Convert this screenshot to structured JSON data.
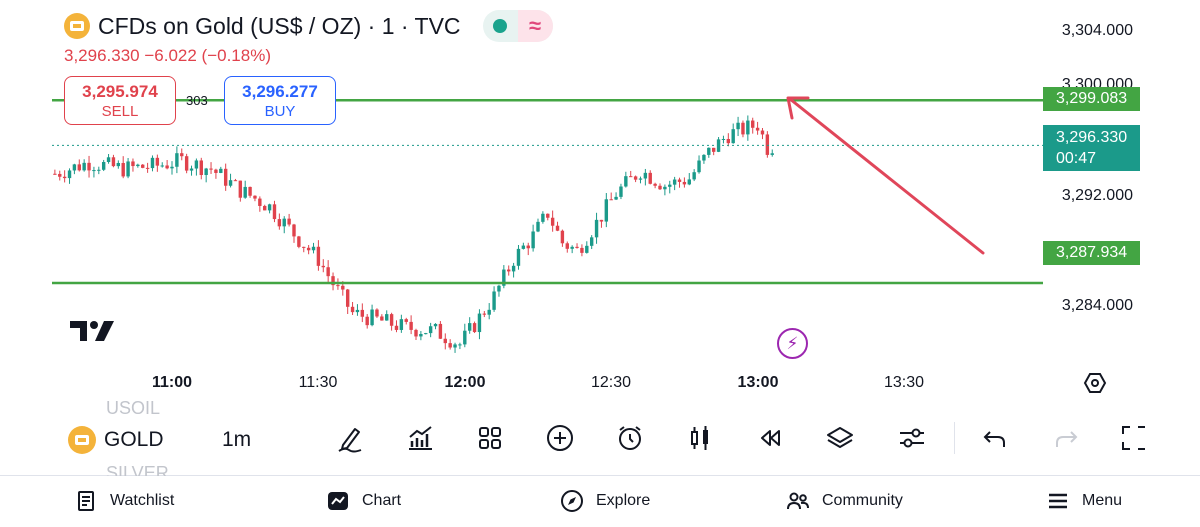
{
  "header": {
    "title": "CFDs on Gold (US$ / OZ) · 1 · TVC",
    "price_line": "3,296.330  −6.022 (−0.18%)"
  },
  "trade": {
    "sell_price": "3,295.974",
    "sell_label": "SELL",
    "spread": "303",
    "buy_price": "3,296.277",
    "buy_label": "BUY"
  },
  "y_axis": {
    "labels": [
      "3,304.000",
      "3,300.000",
      "3,292.000",
      "3,284.000"
    ]
  },
  "price_tags": {
    "resistance": "3,299.083",
    "current_price": "3,296.330",
    "countdown": "00:47",
    "support": "3,287.934"
  },
  "x_axis": {
    "labels": [
      "11:00",
      "11:30",
      "12:00",
      "12:30",
      "13:00",
      "13:30"
    ],
    "bold": [
      "11:00",
      "12:00",
      "13:00"
    ]
  },
  "colors": {
    "up": "#1b9a8a",
    "down": "#e0424c",
    "level_line": "#43a543",
    "arrow": "#e0465a",
    "accent_blue": "#2962ff"
  },
  "toolbar": {
    "ghost_above": "USOIL",
    "symbol": "GOLD",
    "interval": "1m",
    "ghost_below": "SILVER",
    "icons": [
      "pencil-icon",
      "indicators-icon",
      "grid-icon",
      "plus-circle-icon",
      "alarm-icon",
      "candles-icon",
      "replay-icon",
      "layers-icon",
      "settings-sliders-icon",
      "undo-icon",
      "redo-icon",
      "fullscreen-icon"
    ]
  },
  "bottom_nav": {
    "watchlist": "Watchlist",
    "chart": "Chart",
    "explore": "Explore",
    "community": "Community",
    "menu": "Menu"
  },
  "chart_data": {
    "type": "candlestick",
    "x_ticks": [
      "11:00",
      "11:30",
      "12:00",
      "12:30",
      "13:00",
      "13:30"
    ],
    "y_ticks": [
      3284,
      3292,
      3300,
      3304
    ],
    "ylim": [
      3280.8,
      3305.2
    ],
    "horizontal_levels": [
      3299.083,
      3287.934
    ],
    "current_price": 3296.33,
    "close_path": [
      {
        "t": "10:36",
        "price": 3294.6
      },
      {
        "t": "10:43",
        "price": 3295.3
      },
      {
        "t": "10:50",
        "price": 3294.9
      },
      {
        "t": "10:57",
        "price": 3295.1
      },
      {
        "t": "11:02",
        "price": 3295.4
      },
      {
        "t": "11:08",
        "price": 3294.9
      },
      {
        "t": "11:14",
        "price": 3293.6
      },
      {
        "t": "11:20",
        "price": 3292.6
      },
      {
        "t": "11:26",
        "price": 3290.6
      },
      {
        "t": "11:30",
        "price": 3289.4
      },
      {
        "t": "11:33",
        "price": 3287.9
      },
      {
        "t": "11:37",
        "price": 3286.1
      },
      {
        "t": "11:42",
        "price": 3285.7
      },
      {
        "t": "11:48",
        "price": 3285.2
      },
      {
        "t": "11:54",
        "price": 3285.0
      },
      {
        "t": "11:59",
        "price": 3284.2
      },
      {
        "t": "12:02",
        "price": 3285.4
      },
      {
        "t": "12:06",
        "price": 3287.1
      },
      {
        "t": "12:10",
        "price": 3289.4
      },
      {
        "t": "12:14",
        "price": 3290.8
      },
      {
        "t": "12:17",
        "price": 3292.2
      },
      {
        "t": "12:20",
        "price": 3290.4
      },
      {
        "t": "12:23",
        "price": 3289.9
      },
      {
        "t": "12:27",
        "price": 3291.6
      },
      {
        "t": "12:31",
        "price": 3293.4
      },
      {
        "t": "12:36",
        "price": 3294.8
      },
      {
        "t": "12:41",
        "price": 3293.9
      },
      {
        "t": "12:46",
        "price": 3294.3
      },
      {
        "t": "12:50",
        "price": 3295.9
      },
      {
        "t": "12:54",
        "price": 3297.0
      },
      {
        "t": "13:00",
        "price": 3297.6
      },
      {
        "t": "13:02",
        "price": 3296.2
      },
      {
        "t": "13:03",
        "price": 3296.3
      }
    ],
    "annotation": "arrow from near 3,287.934 level line up to 3,299.083 level"
  }
}
